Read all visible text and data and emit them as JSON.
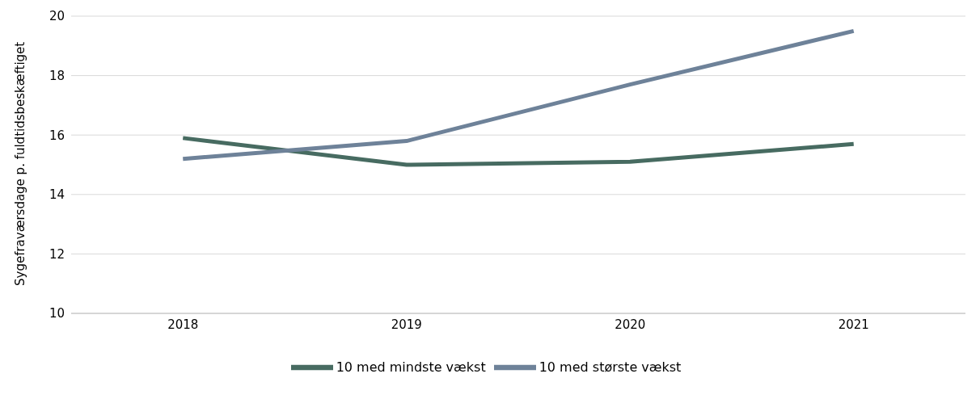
{
  "chart_data": {
    "type": "line",
    "ylabel": "Sygefraværsdage p. fuldtidsbeskæftiget",
    "categories": [
      "2018",
      "2019",
      "2020",
      "2021"
    ],
    "series": [
      {
        "name": "10 med mindste vækst",
        "color": "#476b61",
        "values": [
          15.9,
          15.0,
          15.1,
          15.7
        ]
      },
      {
        "name": "10 med største vækst",
        "color": "#6e8299",
        "values": [
          15.2,
          15.8,
          17.7,
          19.5
        ]
      }
    ],
    "ylim": [
      10,
      20
    ],
    "yticks": [
      10,
      12,
      14,
      16,
      18,
      20
    ],
    "grid": "y",
    "legend": "bottom",
    "marker": "none",
    "line_style": "solid"
  }
}
